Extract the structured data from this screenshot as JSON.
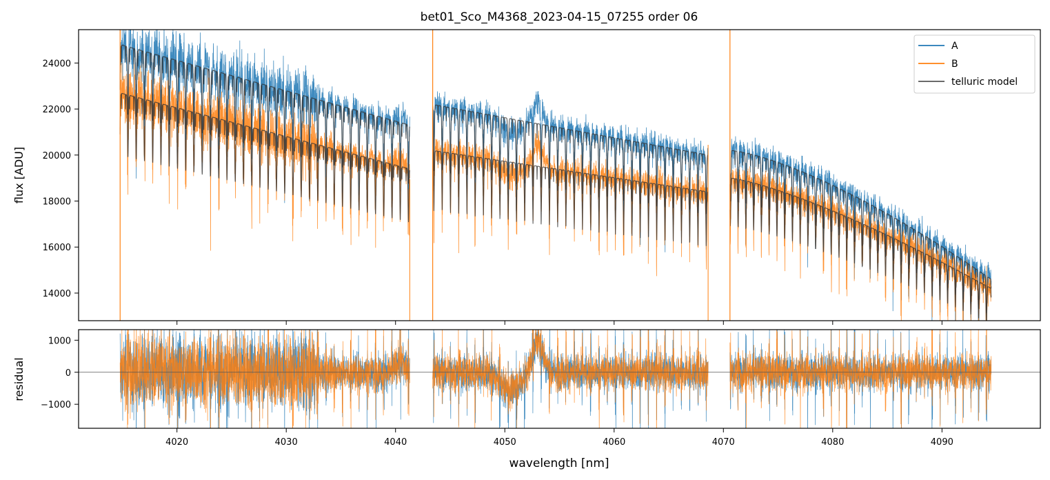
{
  "title": "bet01_Sco_M4368_2023-04-15_07255  order 06",
  "colors": {
    "A": "#1f77b4",
    "B": "#ff7f0e",
    "model": "#333333",
    "axes": "#000000",
    "zero": "#555555"
  },
  "chart_data": [
    {
      "type": "line",
      "panel": "top",
      "xlabel": "",
      "ylabel": "flux [ADU]",
      "xlim": [
        4011,
        4099
      ],
      "ylim": [
        12800,
        25450
      ],
      "x_ticks": [
        4020,
        4030,
        4040,
        4050,
        4060,
        4070,
        4080,
        4090
      ],
      "y_ticks": [
        14000,
        16000,
        18000,
        20000,
        22000,
        24000
      ],
      "y_tick_labels": [
        "14000",
        "16000",
        "18000",
        "20000",
        "22000",
        "24000"
      ],
      "legend": {
        "placement": "top-right",
        "entries": [
          "A",
          "B",
          "telluric model"
        ]
      },
      "segments": [
        {
          "x_range": [
            4014.8,
            4041.3
          ],
          "A_continuum": [
            24800,
            21300
          ],
          "B_continuum": [
            22700,
            19400
          ]
        },
        {
          "x_range": [
            4043.4,
            4068.6
          ],
          "A_continuum": [
            22200,
            20000
          ],
          "B_continuum": [
            20200,
            18400
          ]
        },
        {
          "x_range": [
            4070.6,
            4094.5
          ],
          "A_continuum": [
            20200,
            14600
          ],
          "B_continuum": [
            19000,
            14200
          ]
        }
      ],
      "series": [
        {
          "name": "A",
          "description": "observed spectrum, dense telluric absorption lines"
        },
        {
          "name": "B",
          "description": "observed spectrum, dense telluric absorption lines"
        },
        {
          "name": "telluric model"
        }
      ]
    },
    {
      "type": "line",
      "panel": "bottom",
      "xlabel": "wavelength [nm]",
      "ylabel": "residual",
      "xlim": [
        4011,
        4099
      ],
      "ylim": [
        -1750,
        1330
      ],
      "x_ticks": [
        4020,
        4030,
        4040,
        4050,
        4060,
        4070,
        4080,
        4090
      ],
      "x_tick_labels": [
        "4020",
        "4030",
        "4040",
        "4050",
        "4060",
        "4070",
        "4080",
        "4090"
      ],
      "y_ticks": [
        -1000,
        0,
        1000
      ],
      "y_tick_labels": [
        "−1000",
        "0",
        "1000"
      ],
      "zero_line": 0,
      "features": {
        "bump_center": 4053,
        "bump_height": 1000,
        "dip_center": 4050.5,
        "dip_depth": -550
      }
    }
  ]
}
